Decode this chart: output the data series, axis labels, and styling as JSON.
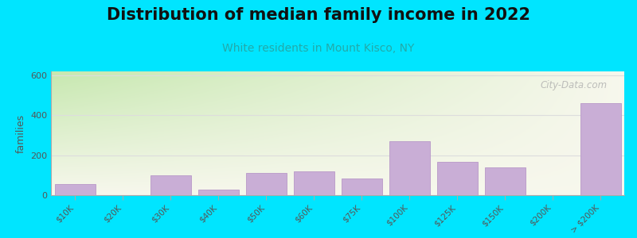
{
  "title": "Distribution of median family income in 2022",
  "subtitle": "White residents in Mount Kisco, NY",
  "ylabel": "families",
  "categories": [
    "$10K",
    "$20K",
    "$30K",
    "$40K",
    "$50K",
    "$60K",
    "$75K",
    "$100K",
    "$125K",
    "$150K",
    "$200K",
    "> $200K"
  ],
  "values": [
    55,
    0,
    100,
    28,
    110,
    120,
    85,
    270,
    165,
    140,
    0,
    460
  ],
  "bar_color": "#c9aed6",
  "bar_edge_color": "#b898c8",
  "ylim": [
    0,
    620
  ],
  "yticks": [
    0,
    200,
    400,
    600
  ],
  "background_outer": "#00e5ff",
  "gradient_bottom_left": "#c8e8b0",
  "gradient_top_right": "#f8f8ee",
  "title_fontsize": 15,
  "subtitle_fontsize": 10,
  "subtitle_color": "#22aaaa",
  "watermark_text": "City-Data.com",
  "grid_color": "#dddddd",
  "tick_label_color": "#555555",
  "ylabel_color": "#555555"
}
